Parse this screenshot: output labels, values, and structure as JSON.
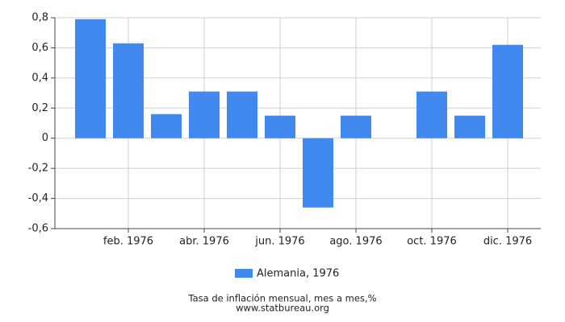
{
  "chart_data": {
    "type": "bar",
    "title": "Tasa de inflación mensual, mes a mes,%",
    "source": "www.statbureau.org",
    "categories": [
      null,
      "feb. 1976",
      null,
      "abr. 1976",
      null,
      "jun. 1976",
      null,
      "ago. 1976",
      null,
      "oct. 1976",
      null,
      "dic. 1976"
    ],
    "series": [
      {
        "name": "Alemania, 1976",
        "color": "#4189ee",
        "values": [
          0.79,
          0.63,
          0.16,
          0.31,
          0.31,
          0.15,
          -0.46,
          0.15,
          0,
          0.31,
          0.15,
          0.62
        ]
      }
    ],
    "ylim": [
      -0.6,
      0.8
    ],
    "yticks": [
      {
        "value": -0.6,
        "label": "-0,6"
      },
      {
        "value": -0.4,
        "label": "-0,4"
      },
      {
        "value": -0.2,
        "label": "-0,2"
      },
      0,
      {
        "value": 0.2,
        "label": "0,2"
      },
      {
        "value": 0.4,
        "label": "0,4"
      },
      {
        "value": 0.6,
        "label": "0,6"
      },
      {
        "value": 0.8,
        "label": "0,8"
      }
    ],
    "grid": true
  }
}
